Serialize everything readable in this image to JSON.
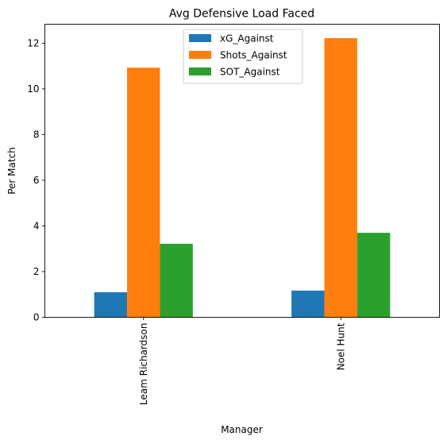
{
  "chart_data": {
    "type": "bar",
    "title": "Avg Defensive Load Faced",
    "xlabel": "Manager",
    "ylabel": "Per Match",
    "categories": [
      "Leam Richardson",
      "Noel Hunt"
    ],
    "series": [
      {
        "name": "xG_Against",
        "values": [
          1.1,
          1.17
        ],
        "color": "#1f77b4"
      },
      {
        "name": "Shots_Against",
        "values": [
          10.93,
          12.22
        ],
        "color": "#ff7f0e"
      },
      {
        "name": "SOT_Against",
        "values": [
          3.22,
          3.7
        ],
        "color": "#2ca02c"
      }
    ],
    "ylim": [
      0,
      12.83
    ],
    "yticks": [
      0,
      2,
      4,
      6,
      8,
      10,
      12
    ],
    "ytick_labels": [
      "0",
      "2",
      "4",
      "6",
      "8",
      "10",
      "12"
    ],
    "legend_position": "upper-center",
    "grid": false
  }
}
